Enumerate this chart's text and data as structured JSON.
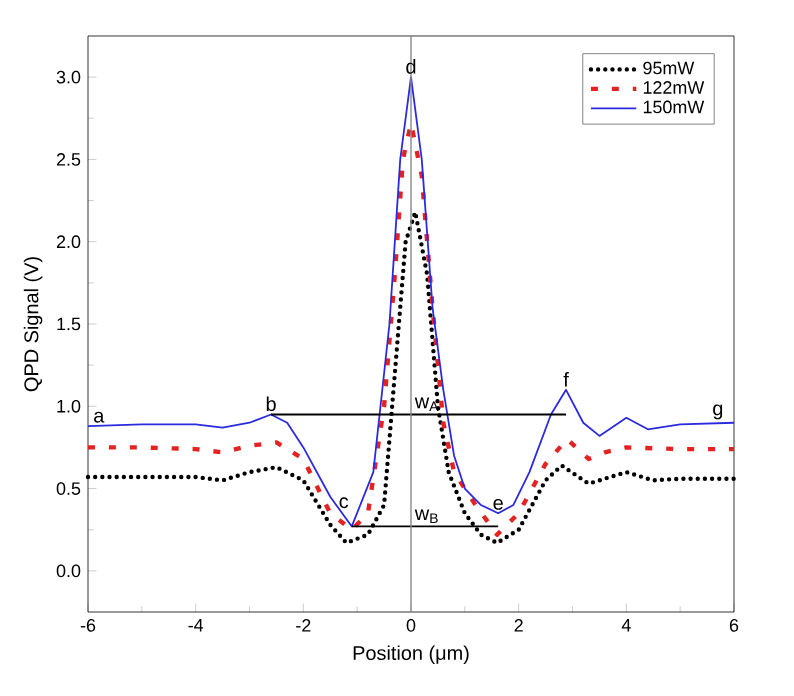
{
  "chart_data": {
    "type": "line",
    "xlabel": "Position (μm)",
    "ylabel": "QPD Signal (V)",
    "xlim": [
      -6,
      6
    ],
    "xticks": [
      -6,
      -4,
      -2,
      0,
      2,
      4,
      6
    ],
    "ylim": [
      -0.25,
      3.25
    ],
    "yticks": [
      {
        "value": 0,
        "label": "0.0"
      },
      {
        "value": 0.5,
        "label": "0.5"
      },
      {
        "value": 1,
        "label": "1.0"
      },
      {
        "value": 1.5,
        "label": "1.5"
      },
      {
        "value": 2,
        "label": "2.0"
      },
      {
        "value": 2.5,
        "label": "2.5"
      },
      {
        "value": 3,
        "label": "3.0"
      }
    ],
    "grid": false,
    "legend": "top right",
    "series": [
      {
        "name": "95mW",
        "color": "#000000",
        "line_style": "dotted",
        "x": [
          -6,
          -5,
          -4,
          -3.5,
          -3,
          -2.5,
          -2,
          -1.5,
          -1.2,
          -0.8,
          -0.5,
          -0.3,
          -0.1,
          0.08,
          0.3,
          0.5,
          0.7,
          1,
          1.3,
          1.6,
          2,
          2.5,
          2.8,
          3.3,
          3.6,
          4,
          4.5,
          5,
          6
        ],
        "values": [
          0.57,
          0.57,
          0.57,
          0.55,
          0.6,
          0.63,
          0.55,
          0.28,
          0.17,
          0.22,
          0.4,
          1.2,
          2.0,
          2.18,
          1.8,
          1.0,
          0.6,
          0.35,
          0.22,
          0.17,
          0.25,
          0.55,
          0.64,
          0.53,
          0.56,
          0.6,
          0.55,
          0.56,
          0.56
        ]
      },
      {
        "name": "122mW",
        "color": "#e52222",
        "line_style": "dashed",
        "x": [
          -6,
          -5,
          -4,
          -3.5,
          -3,
          -2.5,
          -2,
          -1.5,
          -1.1,
          -0.8,
          -0.5,
          -0.3,
          -0.15,
          0,
          0.2,
          0.4,
          0.6,
          0.8,
          1.2,
          1.6,
          2,
          2.5,
          2.9,
          3.3,
          3.6,
          4,
          5,
          6
        ],
        "values": [
          0.75,
          0.75,
          0.74,
          0.72,
          0.76,
          0.78,
          0.68,
          0.35,
          0.25,
          0.35,
          1.0,
          1.8,
          2.5,
          2.72,
          2.4,
          1.6,
          0.9,
          0.6,
          0.4,
          0.22,
          0.35,
          0.65,
          0.8,
          0.68,
          0.72,
          0.75,
          0.74,
          0.74
        ]
      },
      {
        "name": "150mW",
        "color": "#2b2bdd",
        "line_style": "solid",
        "x": [
          -6,
          -5,
          -4,
          -3.5,
          -3,
          -2.6,
          -2.3,
          -2,
          -1.5,
          -1.1,
          -0.7,
          -0.4,
          -0.2,
          0,
          0.2,
          0.4,
          0.6,
          0.8,
          1,
          1.3,
          1.62,
          1.9,
          2.2,
          2.6,
          2.88,
          3.2,
          3.5,
          4,
          4.4,
          5,
          6
        ],
        "values": [
          0.88,
          0.89,
          0.89,
          0.87,
          0.9,
          0.95,
          0.9,
          0.75,
          0.45,
          0.27,
          0.6,
          1.5,
          2.5,
          3.0,
          2.5,
          1.6,
          1.1,
          0.7,
          0.5,
          0.4,
          0.35,
          0.4,
          0.6,
          0.95,
          1.1,
          0.9,
          0.82,
          0.93,
          0.86,
          0.89,
          0.9
        ]
      },
      {
        "type": "line",
        "color": "#000000",
        "line_style": "solid",
        "x": [
          -2.6,
          2.88
        ],
        "values": [
          0.95,
          0.95
        ]
      },
      {
        "type": "line",
        "color": "#000000",
        "line_style": "solid",
        "x": [
          -1.1,
          1.62
        ],
        "values": [
          0.27,
          0.27
        ]
      }
    ],
    "ref_lines": [
      {
        "axis": "x",
        "value": 0,
        "color": "#888888"
      }
    ],
    "annotations": [
      {
        "text": "a",
        "x": -5.8,
        "y": 0.88
      },
      {
        "text": "b",
        "x": -2.6,
        "y": 0.95
      },
      {
        "text": "c",
        "x": -1.25,
        "y": 0.36
      },
      {
        "text": "d",
        "x": 0,
        "y": 3.0
      },
      {
        "text": "e",
        "x": 1.62,
        "y": 0.35
      },
      {
        "text": "f",
        "x": 2.88,
        "y": 1.1
      },
      {
        "text": "g",
        "x": 5.7,
        "y": 0.9
      },
      {
        "text": "w$_{A}$",
        "x": 0.3,
        "y": 0.95
      },
      {
        "text": "w$_{B}$",
        "x": 0.3,
        "y": 0.27
      }
    ]
  }
}
